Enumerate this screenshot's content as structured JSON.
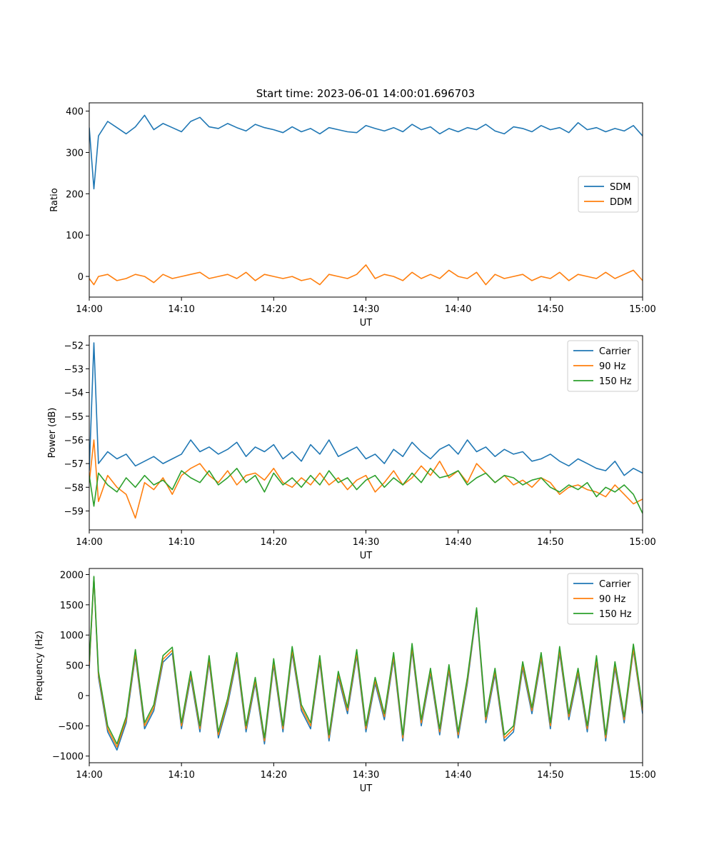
{
  "figure": {
    "title": "Start time: 2023-06-01 14:00:01.696703"
  },
  "colors": {
    "blue": "#1f77b4",
    "orange": "#ff7f0e",
    "green": "#2ca02c"
  },
  "chart_data": [
    {
      "type": "line",
      "title": "Start time: 2023-06-01 14:00:01.696703",
      "xlabel": "UT",
      "ylabel": "Ratio",
      "xlim_minutes": [
        0,
        60
      ],
      "xticks": [
        "14:00",
        "14:10",
        "14:20",
        "14:30",
        "14:40",
        "14:50",
        "15:00"
      ],
      "ylim": [
        -50,
        420
      ],
      "yticks": [
        0,
        100,
        200,
        300,
        400
      ],
      "legend_position": "center-right",
      "grid": false,
      "x_minutes": [
        0,
        0.5,
        1,
        2,
        3,
        4,
        5,
        6,
        7,
        8,
        9,
        10,
        11,
        12,
        13,
        14,
        15,
        16,
        17,
        18,
        19,
        20,
        21,
        22,
        23,
        24,
        25,
        26,
        27,
        28,
        29,
        30,
        31,
        32,
        33,
        34,
        35,
        36,
        37,
        38,
        39,
        40,
        41,
        42,
        43,
        44,
        45,
        46,
        47,
        48,
        49,
        50,
        51,
        52,
        53,
        54,
        55,
        56,
        57,
        58,
        59,
        60
      ],
      "series": [
        {
          "name": "SDM",
          "color": "blue",
          "values": [
            360,
            212,
            340,
            375,
            360,
            345,
            362,
            390,
            355,
            370,
            360,
            350,
            375,
            385,
            362,
            358,
            370,
            360,
            352,
            368,
            360,
            355,
            348,
            362,
            350,
            358,
            345,
            360,
            355,
            350,
            348,
            365,
            358,
            352,
            360,
            350,
            368,
            355,
            362,
            345,
            358,
            350,
            360,
            355,
            368,
            352,
            345,
            362,
            358,
            350,
            365,
            355,
            360,
            348,
            372,
            355,
            360,
            350,
            358,
            352,
            365,
            340
          ]
        },
        {
          "name": "DDM",
          "color": "orange",
          "values": [
            -5,
            -20,
            0,
            5,
            -10,
            -5,
            5,
            0,
            -15,
            5,
            -5,
            0,
            5,
            10,
            -5,
            0,
            5,
            -5,
            10,
            -10,
            5,
            0,
            -5,
            0,
            -10,
            -5,
            -20,
            5,
            0,
            -5,
            5,
            28,
            -5,
            5,
            0,
            -10,
            10,
            -5,
            5,
            -5,
            15,
            0,
            -5,
            10,
            -20,
            5,
            -5,
            0,
            5,
            -10,
            0,
            -5,
            10,
            -10,
            5,
            0,
            -5,
            10,
            -5,
            5,
            15,
            -10
          ]
        }
      ]
    },
    {
      "type": "line",
      "xlabel": "UT",
      "ylabel": "Power (dB)",
      "xlim_minutes": [
        0,
        60
      ],
      "xticks": [
        "14:00",
        "14:10",
        "14:20",
        "14:30",
        "14:40",
        "14:50",
        "15:00"
      ],
      "ylim": [
        -59.8,
        -51.6
      ],
      "yticks": [
        -52,
        -53,
        -54,
        -55,
        -56,
        -57,
        -58,
        -59
      ],
      "legend_position": "top-right",
      "grid": false,
      "x_minutes": [
        0,
        0.5,
        1,
        2,
        3,
        4,
        5,
        6,
        7,
        8,
        9,
        10,
        11,
        12,
        13,
        14,
        15,
        16,
        17,
        18,
        19,
        20,
        21,
        22,
        23,
        24,
        25,
        26,
        27,
        28,
        29,
        30,
        31,
        32,
        33,
        34,
        35,
        36,
        37,
        38,
        39,
        40,
        41,
        42,
        43,
        44,
        45,
        46,
        47,
        48,
        49,
        50,
        51,
        52,
        53,
        54,
        55,
        56,
        57,
        58,
        59,
        60
      ],
      "series": [
        {
          "name": "Carrier",
          "color": "blue",
          "values": [
            -57.3,
            -51.9,
            -57.0,
            -56.5,
            -56.8,
            -56.6,
            -57.1,
            -56.9,
            -56.7,
            -57.0,
            -56.8,
            -56.6,
            -56.0,
            -56.5,
            -56.3,
            -56.6,
            -56.4,
            -56.1,
            -56.7,
            -56.3,
            -56.5,
            -56.2,
            -56.8,
            -56.5,
            -56.9,
            -56.2,
            -56.6,
            -56.0,
            -56.7,
            -56.5,
            -56.3,
            -56.8,
            -56.6,
            -57.0,
            -56.4,
            -56.7,
            -56.1,
            -56.5,
            -56.8,
            -56.4,
            -56.2,
            -56.6,
            -56.0,
            -56.5,
            -56.3,
            -56.7,
            -56.4,
            -56.6,
            -56.5,
            -56.9,
            -56.8,
            -56.6,
            -56.9,
            -57.1,
            -56.8,
            -57.0,
            -57.2,
            -57.3,
            -56.9,
            -57.5,
            -57.2,
            -57.4
          ]
        },
        {
          "name": "90 Hz",
          "color": "orange",
          "values": [
            -57.8,
            -56.0,
            -58.6,
            -57.5,
            -58.0,
            -58.3,
            -59.3,
            -57.8,
            -58.1,
            -57.6,
            -58.3,
            -57.5,
            -57.2,
            -57.0,
            -57.5,
            -57.8,
            -57.3,
            -57.9,
            -57.5,
            -57.4,
            -57.7,
            -57.2,
            -57.8,
            -58.0,
            -57.6,
            -57.9,
            -57.4,
            -57.9,
            -57.6,
            -58.1,
            -57.7,
            -57.5,
            -58.2,
            -57.8,
            -57.3,
            -57.9,
            -57.6,
            -57.1,
            -57.5,
            -56.9,
            -57.6,
            -57.3,
            -57.8,
            -57.0,
            -57.4,
            -57.8,
            -57.5,
            -57.9,
            -57.7,
            -58.0,
            -57.6,
            -57.8,
            -58.3,
            -58.0,
            -57.9,
            -58.1,
            -58.2,
            -58.4,
            -57.9,
            -58.3,
            -58.7,
            -58.5
          ]
        },
        {
          "name": "150 Hz",
          "color": "green",
          "values": [
            -57.5,
            -58.8,
            -57.4,
            -57.9,
            -58.2,
            -57.6,
            -58.0,
            -57.5,
            -57.9,
            -57.7,
            -58.1,
            -57.3,
            -57.6,
            -57.8,
            -57.3,
            -57.9,
            -57.6,
            -57.2,
            -57.8,
            -57.5,
            -58.2,
            -57.4,
            -57.9,
            -57.6,
            -58.0,
            -57.5,
            -57.9,
            -57.3,
            -57.8,
            -57.6,
            -58.1,
            -57.7,
            -57.5,
            -58.0,
            -57.6,
            -57.9,
            -57.4,
            -57.8,
            -57.2,
            -57.6,
            -57.5,
            -57.3,
            -57.9,
            -57.6,
            -57.4,
            -57.8,
            -57.5,
            -57.6,
            -57.9,
            -57.7,
            -57.6,
            -58.0,
            -58.2,
            -57.9,
            -58.1,
            -57.8,
            -58.4,
            -58.0,
            -58.2,
            -57.9,
            -58.3,
            -59.1
          ]
        }
      ]
    },
    {
      "type": "line",
      "xlabel": "UT",
      "ylabel": "Frequency (Hz)",
      "xlim_minutes": [
        0,
        60
      ],
      "xticks": [
        "14:00",
        "14:10",
        "14:20",
        "14:30",
        "14:40",
        "14:50",
        "15:00"
      ],
      "ylim": [
        -1110,
        2100
      ],
      "yticks": [
        -1000,
        -500,
        0,
        500,
        1000,
        1500,
        2000
      ],
      "legend_position": "top-right",
      "grid": false,
      "x_minutes": [
        0,
        0.5,
        1,
        2,
        3,
        4,
        5,
        6,
        7,
        8,
        9,
        10,
        11,
        12,
        13,
        14,
        15,
        16,
        17,
        18,
        19,
        20,
        21,
        22,
        23,
        24,
        25,
        26,
        27,
        28,
        29,
        30,
        31,
        32,
        33,
        34,
        35,
        36,
        37,
        38,
        39,
        40,
        41,
        42,
        43,
        44,
        45,
        46,
        47,
        48,
        49,
        50,
        51,
        52,
        53,
        54,
        55,
        56,
        57,
        58,
        59,
        60
      ],
      "series": [
        {
          "name": "Carrier",
          "color": "blue",
          "values": [
            450,
            1950,
            300,
            -600,
            -900,
            -450,
            650,
            -550,
            -250,
            550,
            700,
            -550,
            300,
            -600,
            550,
            -700,
            -150,
            600,
            -600,
            200,
            -800,
            500,
            -600,
            700,
            -250,
            -550,
            550,
            -750,
            300,
            -300,
            650,
            -600,
            200,
            -400,
            600,
            -750,
            750,
            -500,
            350,
            -650,
            400,
            -700,
            200,
            1400,
            -450,
            350,
            -750,
            -600,
            450,
            -300,
            600,
            -550,
            700,
            -400,
            350,
            -600,
            550,
            -750,
            450,
            -450,
            750,
            -300
          ]
        },
        {
          "name": "90 Hz",
          "color": "orange",
          "values": [
            500,
            1950,
            350,
            -550,
            -850,
            -400,
            700,
            -500,
            -200,
            600,
            750,
            -500,
            350,
            -550,
            600,
            -650,
            -100,
            650,
            -550,
            250,
            -750,
            550,
            -550,
            750,
            -200,
            -500,
            600,
            -700,
            350,
            -250,
            700,
            -550,
            250,
            -350,
            650,
            -700,
            800,
            -450,
            400,
            -600,
            450,
            -650,
            250,
            1430,
            -400,
            400,
            -700,
            -550,
            500,
            -250,
            650,
            -500,
            750,
            -350,
            400,
            -550,
            600,
            -700,
            500,
            -400,
            780,
            -250
          ]
        },
        {
          "name": "150 Hz",
          "color": "green",
          "values": [
            560,
            1970,
            400,
            -500,
            -800,
            -350,
            760,
            -450,
            -150,
            660,
            800,
            -450,
            400,
            -500,
            660,
            -600,
            -50,
            710,
            -500,
            300,
            -700,
            610,
            -500,
            810,
            -150,
            -450,
            660,
            -650,
            400,
            -200,
            760,
            -500,
            300,
            -300,
            710,
            -650,
            860,
            -400,
            450,
            -550,
            510,
            -600,
            300,
            1450,
            -350,
            450,
            -650,
            -500,
            560,
            -200,
            710,
            -450,
            810,
            -300,
            450,
            -500,
            660,
            -650,
            560,
            -350,
            850,
            -200
          ]
        }
      ]
    }
  ]
}
